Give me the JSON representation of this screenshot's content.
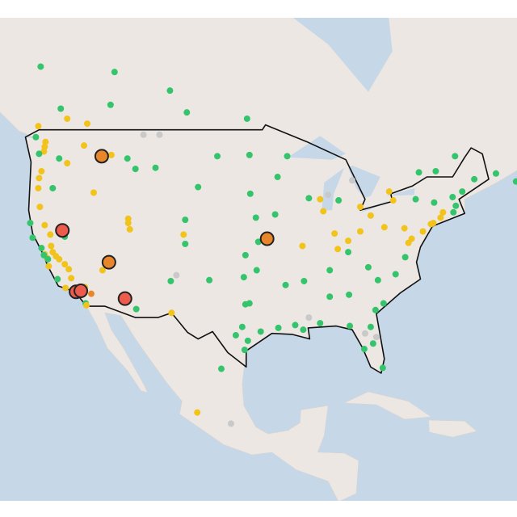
{
  "map": {
    "levels": [
      "#34c46c",
      "#f2c31b",
      "#e8862c",
      "#ec5b4c",
      "#c9c9c9"
    ],
    "stations": [
      [
        -121.5,
        38.6,
        1
      ],
      [
        -121.3,
        38.0,
        1
      ],
      [
        -120.9,
        37.6,
        1
      ],
      [
        -120.5,
        37.3,
        1
      ],
      [
        -119.8,
        36.8,
        1
      ],
      [
        -119.3,
        36.3,
        1
      ],
      [
        -119.0,
        35.4,
        1
      ],
      [
        -122.3,
        37.8,
        1
      ],
      [
        -122.0,
        37.4,
        1
      ],
      [
        -121.9,
        37.3,
        0
      ],
      [
        -122.4,
        37.7,
        0
      ],
      [
        -121.8,
        36.6,
        1
      ],
      [
        -120.7,
        35.3,
        0
      ],
      [
        -119.7,
        34.4,
        1
      ],
      [
        -118.5,
        34.2,
        1
      ],
      [
        -117.9,
        33.8,
        1
      ],
      [
        -117.2,
        32.8,
        0
      ],
      [
        -117.1,
        32.6,
        1
      ],
      [
        -116.5,
        33.8,
        2
      ],
      [
        -117.3,
        34.5,
        1
      ],
      [
        -122.7,
        38.4,
        0
      ],
      [
        -123.8,
        39.4,
        0
      ],
      [
        -124.1,
        40.8,
        0
      ],
      [
        -122.3,
        40.6,
        1
      ],
      [
        -121.6,
        39.7,
        1
      ],
      [
        -123.0,
        44.9,
        1
      ],
      [
        -122.7,
        45.5,
        1
      ],
      [
        -123.1,
        44.0,
        1
      ],
      [
        -121.3,
        44.0,
        0
      ],
      [
        -122.9,
        42.3,
        1
      ],
      [
        -122.3,
        47.6,
        1
      ],
      [
        -122.4,
        47.2,
        1
      ],
      [
        -122.2,
        48.0,
        1
      ],
      [
        -123.0,
        47.0,
        0
      ],
      [
        -117.4,
        47.7,
        1
      ],
      [
        -119.5,
        46.2,
        1
      ],
      [
        -120.5,
        46.6,
        0
      ],
      [
        -123.4,
        48.4,
        0
      ],
      [
        -123.1,
        49.3,
        1
      ],
      [
        -116.2,
        43.6,
        1
      ],
      [
        -114.0,
        46.9,
        1
      ],
      [
        -112.0,
        46.6,
        0
      ],
      [
        -111.0,
        45.7,
        0
      ],
      [
        -108.5,
        45.8,
        0
      ],
      [
        -104.8,
        41.1,
        0
      ],
      [
        -105.0,
        39.7,
        1
      ],
      [
        -104.8,
        38.8,
        0
      ],
      [
        -106.6,
        35.1,
        0
      ],
      [
        -111.9,
        40.8,
        1
      ],
      [
        -111.7,
        40.2,
        1
      ],
      [
        -111.9,
        41.2,
        1
      ],
      [
        -112.1,
        33.5,
        0
      ],
      [
        -110.9,
        32.2,
        0
      ],
      [
        -115.1,
        36.2,
        1
      ],
      [
        -119.8,
        39.5,
        0
      ],
      [
        -118.3,
        34.1,
        1
      ],
      [
        -106.5,
        31.8,
        1
      ],
      [
        -97.7,
        30.3,
        0
      ],
      [
        -95.4,
        29.8,
        0
      ],
      [
        -96.8,
        32.8,
        0
      ],
      [
        -98.5,
        29.4,
        0
      ],
      [
        -97.3,
        32.7,
        0
      ],
      [
        -101.8,
        35.2,
        0
      ],
      [
        -97.5,
        35.5,
        0
      ],
      [
        -95.9,
        36.2,
        0
      ],
      [
        -97.3,
        37.7,
        0
      ],
      [
        -95.7,
        39.0,
        0
      ],
      [
        -96.0,
        41.3,
        0
      ],
      [
        -93.6,
        41.6,
        0
      ],
      [
        -93.3,
        45.0,
        0
      ],
      [
        -92.1,
        46.8,
        0
      ],
      [
        -96.8,
        46.9,
        0
      ],
      [
        -100.8,
        46.8,
        0
      ],
      [
        -103.2,
        44.1,
        0
      ],
      [
        -96.7,
        43.5,
        0
      ],
      [
        -90.2,
        38.6,
        1
      ],
      [
        -87.6,
        41.9,
        1
      ],
      [
        -88.0,
        43.0,
        1
      ],
      [
        -89.4,
        43.1,
        0
      ],
      [
        -86.2,
        39.8,
        1
      ],
      [
        -84.5,
        39.1,
        1
      ],
      [
        -83.0,
        40.0,
        1
      ],
      [
        -81.7,
        41.5,
        1
      ],
      [
        -83.0,
        42.3,
        1
      ],
      [
        -85.7,
        42.9,
        0
      ],
      [
        -84.4,
        33.7,
        0
      ],
      [
        -86.8,
        33.5,
        0
      ],
      [
        -90.0,
        35.1,
        0
      ],
      [
        -86.8,
        36.2,
        0
      ],
      [
        -85.8,
        38.3,
        1
      ],
      [
        -84.5,
        38.0,
        0
      ],
      [
        -82.0,
        36.5,
        0
      ],
      [
        -80.8,
        35.2,
        0
      ],
      [
        -78.6,
        35.8,
        0
      ],
      [
        -77.4,
        37.5,
        0
      ],
      [
        -77.0,
        38.9,
        1
      ],
      [
        -76.6,
        39.3,
        1
      ],
      [
        -75.2,
        40.0,
        1
      ],
      [
        -74.2,
        40.7,
        1
      ],
      [
        -73.9,
        40.8,
        1
      ],
      [
        -73.0,
        41.3,
        1
      ],
      [
        -72.7,
        41.8,
        1
      ],
      [
        -71.4,
        41.8,
        0
      ],
      [
        -71.1,
        42.4,
        0
      ],
      [
        -70.3,
        43.7,
        0
      ],
      [
        -68.8,
        44.8,
        0
      ],
      [
        -71.5,
        43.2,
        0
      ],
      [
        -73.8,
        42.7,
        0
      ],
      [
        -76.1,
        43.0,
        0
      ],
      [
        -78.9,
        42.9,
        1
      ],
      [
        -80.0,
        40.4,
        1
      ],
      [
        -77.5,
        40.3,
        1
      ],
      [
        -79.4,
        43.7,
        1
      ],
      [
        -75.7,
        45.4,
        0
      ],
      [
        -73.6,
        45.5,
        0
      ],
      [
        -71.2,
        46.8,
        0
      ],
      [
        -63.6,
        44.6,
        0
      ],
      [
        -66.1,
        45.3,
        0
      ],
      [
        -80.2,
        25.8,
        0
      ],
      [
        -81.4,
        28.5,
        0
      ],
      [
        -82.5,
        27.9,
        0
      ],
      [
        -81.7,
        30.3,
        0
      ],
      [
        -84.3,
        30.4,
        0
      ],
      [
        -80.1,
        32.8,
        0
      ],
      [
        -81.1,
        32.1,
        0
      ],
      [
        -88.0,
        30.7,
        0
      ],
      [
        -90.1,
        30.0,
        0
      ],
      [
        -91.1,
        30.5,
        0
      ],
      [
        -93.2,
        30.2,
        0
      ],
      [
        -92.3,
        34.7,
        0
      ],
      [
        -94.6,
        39.1,
        2
      ],
      [
        -97.0,
        28.8,
        0
      ],
      [
        -97.4,
        27.8,
        0
      ],
      [
        -113.6,
        53.5,
        0
      ],
      [
        -114.1,
        51.0,
        0
      ],
      [
        -106.7,
        52.1,
        0
      ],
      [
        -104.6,
        50.4,
        0
      ],
      [
        -97.1,
        49.9,
        0
      ],
      [
        -117.0,
        49.5,
        1
      ],
      [
        -119.5,
        49.9,
        1
      ],
      [
        -120.3,
        50.7,
        0
      ],
      [
        -122.8,
        53.9,
        0
      ],
      [
        -103.3,
        20.7,
        1
      ],
      [
        -99.1,
        19.4,
        4
      ],
      [
        -100.3,
        25.7,
        0
      ],
      [
        -81.0,
        29.2,
        4
      ],
      [
        -82.4,
        29.6,
        4
      ],
      [
        -89.4,
        31.3,
        4
      ],
      [
        -87.0,
        43.4,
        4
      ],
      [
        -84.0,
        44.7,
        4
      ],
      [
        -105.9,
        35.7,
        4
      ],
      [
        -110.0,
        48.6,
        4
      ],
      [
        -108.0,
        48.6,
        4
      ]
    ],
    "highlighted": [
      [
        -120.1,
        40.1,
        3
      ],
      [
        -115.2,
        46.8,
        2
      ],
      [
        -114.3,
        37.0,
        2
      ],
      [
        -118.4,
        34.0,
        3
      ],
      [
        -117.8,
        34.1,
        3
      ],
      [
        -112.3,
        33.3,
        3
      ],
      [
        -94.6,
        39.3,
        2
      ]
    ]
  }
}
